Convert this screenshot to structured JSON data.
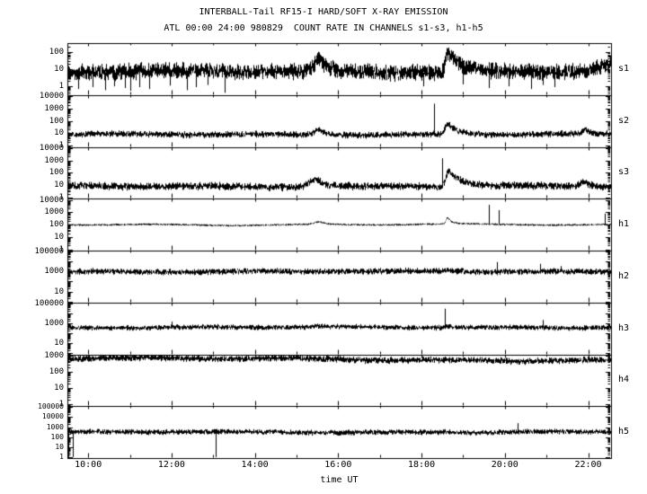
{
  "chart_data": {
    "type": "line",
    "title": "INTERBALL-Tail RF15-I HARD/SOFT X-RAY EMISSION",
    "subtitle": "ATL 00:00 24:00 980829  COUNT RATE IN CHANNELS s1-s3, h1-h5",
    "colors": {
      "line": "#000000",
      "frame": "#000000",
      "background": "#ffffff",
      "text": "#000000"
    },
    "x_axis": {
      "label": "time UT",
      "start_hour": 9.5,
      "end_hour": 22.55,
      "major_ticks": [
        {
          "hour": 10,
          "label": "10:00"
        },
        {
          "hour": 12,
          "label": "12:00"
        },
        {
          "hour": 14,
          "label": "14:00"
        },
        {
          "hour": 16,
          "label": "16:00"
        },
        {
          "hour": 18,
          "label": "18:00"
        },
        {
          "hour": 20,
          "label": "20:00"
        },
        {
          "hour": 22,
          "label": "22:00"
        }
      ],
      "minor_tick_hours": 1
    },
    "y_axis_scale": "log",
    "panels": [
      {
        "name": "s1",
        "log_min": -0.5,
        "log_max": 2.5,
        "yticks": [
          {
            "label": "100",
            "value": 100
          },
          {
            "label": "10",
            "value": 10
          },
          {
            "label": "1",
            "value": 1
          }
        ],
        "baseline": 0.85,
        "noise": 0.3,
        "trend": 0,
        "peaks": [
          {
            "t": 15.55,
            "amp": 0.7,
            "rise": 0.12,
            "decay": 0.18
          },
          {
            "t": 18.62,
            "amp": 1.15,
            "rise": 0.05,
            "decay": 0.32
          },
          {
            "t": 22.65,
            "amp": 0.5,
            "rise": 0.3,
            "decay": 0.2
          }
        ],
        "spikes_up": [],
        "spikes_down": [
          {
            "t": 9.75,
            "value": 0.7
          },
          {
            "t": 10.1,
            "value": 0.9
          },
          {
            "t": 10.4,
            "value": 0.6
          },
          {
            "t": 10.62,
            "value": 1.0
          },
          {
            "t": 10.87,
            "value": 0.8
          },
          {
            "t": 11.0,
            "value": 0.55
          },
          {
            "t": 11.22,
            "value": 0.9
          },
          {
            "t": 11.47,
            "value": 0.7
          },
          {
            "t": 11.95,
            "value": 1.1
          },
          {
            "t": 12.37,
            "value": 0.6
          },
          {
            "t": 12.58,
            "value": 0.9
          },
          {
            "t": 12.87,
            "value": 1.2
          },
          {
            "t": 13.28,
            "value": 0.42
          },
          {
            "t": 18.05,
            "value": 1.0
          },
          {
            "t": 19.0,
            "value": 1.3
          },
          {
            "t": 19.62,
            "value": 0.8
          },
          {
            "t": 20.1,
            "value": 1.0
          },
          {
            "t": 20.62,
            "value": 0.7
          },
          {
            "t": 20.92,
            "value": 1.2
          },
          {
            "t": 21.2,
            "value": 0.9
          }
        ]
      },
      {
        "name": "s2",
        "log_min": -0.1,
        "log_max": 4.1,
        "yticks": [
          {
            "label": "10000",
            "value": 10000
          },
          {
            "label": "1000",
            "value": 1000
          },
          {
            "label": "100",
            "value": 100
          },
          {
            "label": "10",
            "value": 10
          },
          {
            "label": "1",
            "value": 1
          }
        ],
        "baseline": 0.9,
        "noise": 0.17,
        "trend": 0,
        "peaks": [
          {
            "t": 15.55,
            "amp": 0.5,
            "rise": 0.12,
            "decay": 0.15
          },
          {
            "t": 18.62,
            "amp": 0.9,
            "rise": 0.06,
            "decay": 0.25
          },
          {
            "t": 21.95,
            "amp": 0.35,
            "rise": 0.08,
            "decay": 0.08
          }
        ],
        "spikes_up": [
          {
            "t": 18.3,
            "value": 2500
          }
        ],
        "spikes_down": []
      },
      {
        "name": "s3",
        "log_min": -0.1,
        "log_max": 4.1,
        "yticks": [
          {
            "label": "10000",
            "value": 10000
          },
          {
            "label": "1000",
            "value": 1000
          },
          {
            "label": "100",
            "value": 100
          },
          {
            "label": "10",
            "value": 10
          },
          {
            "label": "1",
            "value": 1
          }
        ],
        "baseline": 0.9,
        "noise": 0.2,
        "trend": 0,
        "peaks": [
          {
            "t": 15.45,
            "amp": 0.65,
            "rise": 0.15,
            "decay": 0.22
          },
          {
            "t": 18.65,
            "amp": 1.3,
            "rise": 0.07,
            "decay": 0.3
          },
          {
            "t": 21.9,
            "amp": 0.4,
            "rise": 0.1,
            "decay": 0.12
          }
        ],
        "spikes_up": [
          {
            "t": 18.5,
            "value": 1500
          }
        ],
        "spikes_down": []
      },
      {
        "name": "h1",
        "log_min": -0.1,
        "log_max": 4.1,
        "yticks": [
          {
            "label": "10000",
            "value": 10000
          },
          {
            "label": "1000",
            "value": 1000
          },
          {
            "label": "100",
            "value": 100
          },
          {
            "label": "10",
            "value": 10
          },
          {
            "label": "1",
            "value": 1
          }
        ],
        "baseline": 2.0,
        "noise": 0.05,
        "trend": 0,
        "peaks": [
          {
            "t": 15.55,
            "amp": 0.2,
            "rise": 0.12,
            "decay": 0.15
          },
          {
            "t": 18.62,
            "amp": 0.5,
            "rise": 0.04,
            "decay": 0.1
          }
        ],
        "spikes_up": [
          {
            "t": 19.62,
            "value": 4000
          },
          {
            "t": 19.85,
            "value": 1500
          },
          {
            "t": 22.4,
            "value": 800
          }
        ],
        "spikes_down": []
      },
      {
        "name": "h2",
        "log_min": -0.1,
        "log_max": 5.1,
        "yticks": [
          {
            "label": "100000",
            "value": 100000
          },
          {
            "label": "1000",
            "value": 1000
          },
          {
            "label": "10",
            "value": 10
          }
        ],
        "baseline": 3.0,
        "noise": 0.2,
        "trend": 0,
        "peaks": [
          {
            "t": 18.62,
            "amp": 0.12,
            "rise": 0.1,
            "decay": 0.2
          }
        ],
        "spikes_up": [
          {
            "t": 19.8,
            "value": 9000
          },
          {
            "t": 20.85,
            "value": 6000
          },
          {
            "t": 21.35,
            "value": 3500
          }
        ],
        "spikes_down": []
      },
      {
        "name": "h3",
        "log_min": -0.1,
        "log_max": 5.1,
        "yticks": [
          {
            "label": "100000",
            "value": 100000
          },
          {
            "label": "1000",
            "value": 1000
          },
          {
            "label": "10",
            "value": 10
          }
        ],
        "baseline": 2.6,
        "noise": 0.17,
        "trend": 0,
        "peaks": [
          {
            "t": 15.5,
            "amp": 0.1,
            "rise": 0.12,
            "decay": 0.15
          },
          {
            "t": 18.62,
            "amp": 0.18,
            "rise": 0.08,
            "decay": 0.18
          }
        ],
        "spikes_up": [
          {
            "t": 12.0,
            "value": 1500
          },
          {
            "t": 18.55,
            "value": 30000
          },
          {
            "t": 20.9,
            "value": 2200
          }
        ],
        "spikes_down": []
      },
      {
        "name": "h4",
        "log_min": -0.1,
        "log_max": 3.1,
        "yticks": [
          {
            "label": "1000",
            "value": 1000
          },
          {
            "label": "100",
            "value": 100
          },
          {
            "label": "10",
            "value": 10
          },
          {
            "label": "1",
            "value": 1
          }
        ],
        "baseline": 2.88,
        "noise": 0.13,
        "trend": -0.18,
        "peaks": [],
        "spikes_up": [],
        "spikes_down": []
      },
      {
        "name": "h5",
        "log_min": -0.1,
        "log_max": 5.1,
        "yticks": [
          {
            "label": "100000",
            "value": 100000
          },
          {
            "label": "10000",
            "value": 10000
          },
          {
            "label": "1000",
            "value": 1000
          },
          {
            "label": "100",
            "value": 100
          },
          {
            "label": "10",
            "value": 10
          },
          {
            "label": "1",
            "value": 1
          }
        ],
        "baseline": 2.5,
        "noise": 0.17,
        "trend": 0,
        "peaks": [
          {
            "t": 18.62,
            "amp": 0.08,
            "rise": 0.1,
            "decay": 0.15
          }
        ],
        "spikes_up": [
          {
            "t": 20.3,
            "value": 2500
          }
        ],
        "spikes_down": [
          {
            "t": 9.53,
            "value": 1
          },
          {
            "t": 9.62,
            "value": 1
          },
          {
            "t": 13.05,
            "value": 1
          }
        ]
      }
    ]
  }
}
